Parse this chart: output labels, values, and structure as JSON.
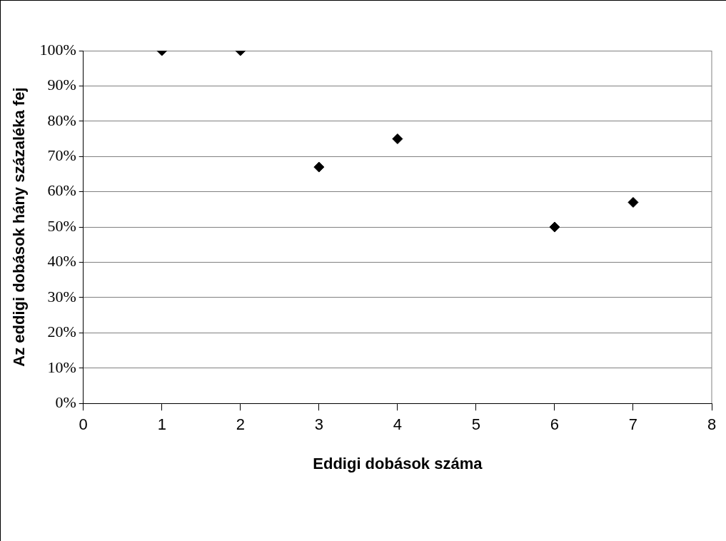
{
  "chart_data": {
    "type": "scatter",
    "xlabel": "Eddigi dobások száma",
    "ylabel": "Az eddigi dobások hány százaléka fej",
    "x": [
      1,
      2,
      3,
      4,
      6,
      7
    ],
    "values": [
      100,
      100,
      67,
      75,
      50,
      57
    ],
    "color": "#000000",
    "marker": "diamond",
    "grid": "y",
    "legend": false,
    "xlim": [
      0,
      8
    ],
    "xticks": [
      0,
      1,
      2,
      3,
      4,
      5,
      6,
      7,
      8
    ],
    "ylim": [
      0,
      100
    ],
    "yticks": [
      {
        "value": 0,
        "label": "0%"
      },
      {
        "value": 10,
        "label": "10%"
      },
      {
        "value": 20,
        "label": "20%"
      },
      {
        "value": 30,
        "label": "30%"
      },
      {
        "value": 40,
        "label": "40%"
      },
      {
        "value": 50,
        "label": "50%"
      },
      {
        "value": 60,
        "label": "60%"
      },
      {
        "value": 70,
        "label": "70%"
      },
      {
        "value": 80,
        "label": "80%"
      },
      {
        "value": 90,
        "label": "90%"
      },
      {
        "value": 100,
        "label": "100%"
      }
    ]
  }
}
